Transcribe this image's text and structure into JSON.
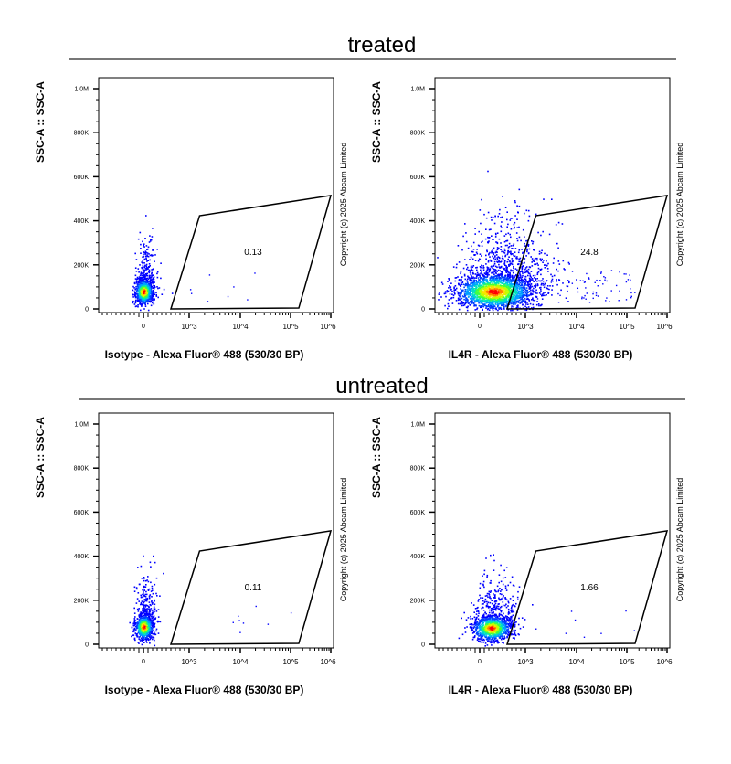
{
  "groups": [
    {
      "title": "treated"
    },
    {
      "title": "untreated"
    }
  ],
  "chart_data": [
    {
      "type": "scatter",
      "group": "treated",
      "xlabel": "Isotype - Alexa Fluor® 488 (530/30 BP)",
      "ylabel": "SSC-A :: SSC-A",
      "gate_value": "0.13",
      "copyright": "Copyright (c) 2025 Abcam Limited",
      "x_scale": "biexponential",
      "x_ticks": [
        "0",
        "10^3",
        "10^4",
        "10^5",
        "10^6"
      ],
      "y_ticks": [
        "0",
        "200K",
        "400K",
        "600K",
        "800K",
        "1.0M"
      ],
      "ylim": [
        0,
        1000000
      ],
      "gate": [
        [
          600,
          0
        ],
        [
          1600,
          423000
        ],
        [
          1000000,
          515000
        ],
        [
          160000,
          4000
        ]
      ],
      "population": {
        "x_center": 0,
        "y_center": 80000,
        "spread": "narrow"
      }
    },
    {
      "type": "scatter",
      "group": "treated",
      "xlabel": "IL4R - Alexa Fluor® 488 (530/30 BP)",
      "ylabel": "SSC-A :: SSC-A",
      "gate_value": "24.8",
      "copyright": "Copyright (c) 2025 Abcam Limited",
      "x_scale": "biexponential",
      "x_ticks": [
        "0",
        "10^3",
        "10^4",
        "10^5",
        "10^6"
      ],
      "y_ticks": [
        "0",
        "200K",
        "400K",
        "600K",
        "800K",
        "1.0M"
      ],
      "ylim": [
        0,
        1000000
      ],
      "gate": [
        [
          600,
          0
        ],
        [
          1600,
          423000
        ],
        [
          1000000,
          515000
        ],
        [
          160000,
          4000
        ]
      ],
      "population": {
        "x_center": 300,
        "y_center": 80000,
        "spread": "wide"
      }
    },
    {
      "type": "scatter",
      "group": "untreated",
      "xlabel": "Isotype - Alexa Fluor® 488 (530/30 BP)",
      "ylabel": "SSC-A :: SSC-A",
      "gate_value": "0.11",
      "copyright": "Copyright (c) 2025 Abcam Limited",
      "x_scale": "biexponential",
      "x_ticks": [
        "0",
        "10^3",
        "10^4",
        "10^5",
        "10^6"
      ],
      "y_ticks": [
        "0",
        "200K",
        "400K",
        "600K",
        "800K",
        "1.0M"
      ],
      "ylim": [
        0,
        1000000
      ],
      "gate": [
        [
          600,
          0
        ],
        [
          1600,
          423000
        ],
        [
          1000000,
          515000
        ],
        [
          160000,
          4000
        ]
      ],
      "population": {
        "x_center": 0,
        "y_center": 80000,
        "spread": "narrow"
      }
    },
    {
      "type": "scatter",
      "group": "untreated",
      "xlabel": "IL4R - Alexa Fluor® 488 (530/30 BP)",
      "ylabel": "SSC-A :: SSC-A",
      "gate_value": "1.66",
      "copyright": "Copyright (c) 2025 Abcam Limited",
      "x_scale": "biexponential",
      "x_ticks": [
        "0",
        "10^3",
        "10^4",
        "10^5",
        "10^6"
      ],
      "y_ticks": [
        "0",
        "200K",
        "400K",
        "600K",
        "800K",
        "1.0M"
      ],
      "ylim": [
        0,
        1000000
      ],
      "gate": [
        [
          600,
          0
        ],
        [
          1600,
          423000
        ],
        [
          1000000,
          515000
        ],
        [
          160000,
          4000
        ]
      ],
      "population": {
        "x_center": 250,
        "y_center": 75000,
        "spread": "medium"
      }
    }
  ]
}
